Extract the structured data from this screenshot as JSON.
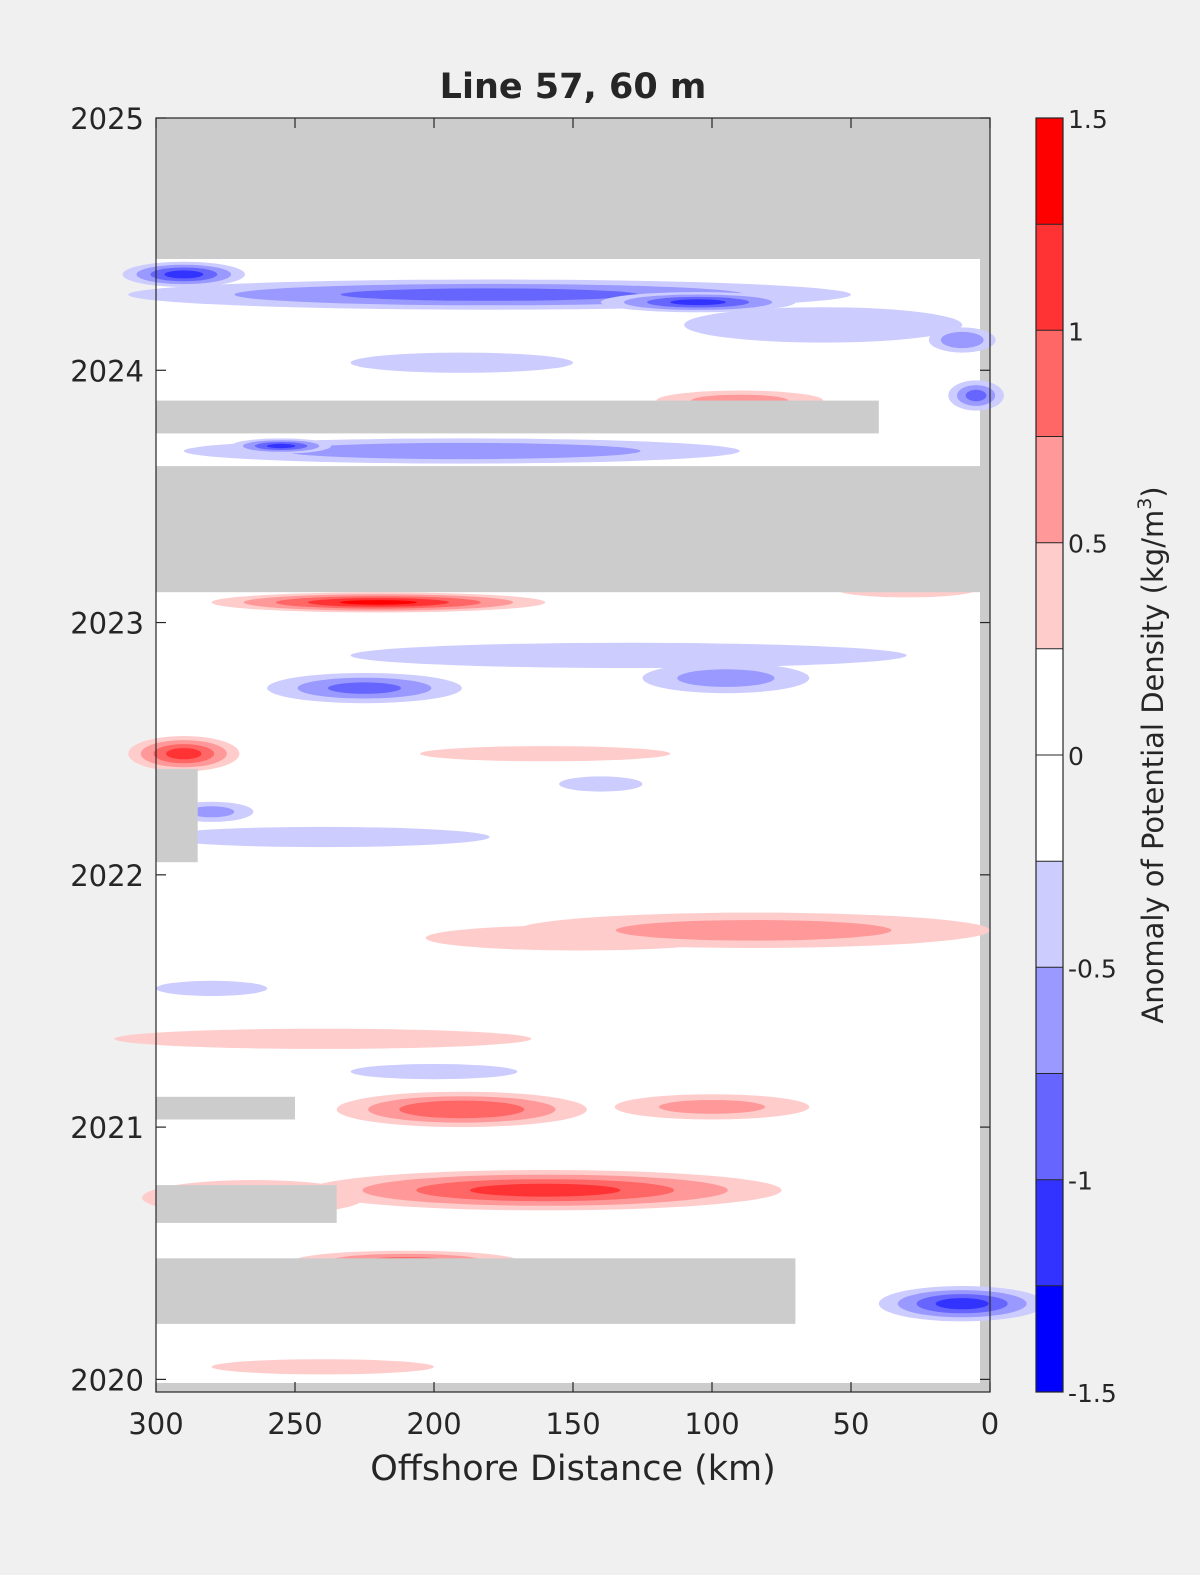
{
  "chart_data": {
    "type": "heatmap",
    "title": "Line 57, 60 m",
    "xlabel": "Offshore Distance (km)",
    "ylabel": "",
    "xlim": [
      300,
      0
    ],
    "ylim": [
      2019.95,
      2025
    ],
    "x_ticks": [
      300,
      250,
      200,
      150,
      100,
      50,
      0
    ],
    "x_tick_labels": [
      "300",
      "250",
      "200",
      "150",
      "100",
      "50",
      "0"
    ],
    "y_ticks": [
      2020,
      2021,
      2022,
      2023,
      2024,
      2025
    ],
    "y_tick_labels": [
      "2020",
      "2021",
      "2022",
      "2023",
      "2024",
      "2025"
    ],
    "grid": false,
    "colorbar": {
      "label_main": "Anomaly of Potential Density (kg/m",
      "label_sup": "3",
      "label_end": ")",
      "range": [
        -1.5,
        1.5
      ],
      "ticks": [
        -1.5,
        -1,
        -0.5,
        0,
        0.5,
        1,
        1.5
      ],
      "tick_labels": [
        "-1.5",
        "-1",
        "-0.5",
        "0",
        "0.5",
        "1",
        "1.5"
      ],
      "levels": [
        {
          "from": -1.5,
          "to": -1.25,
          "color": "#0000ff"
        },
        {
          "from": -1.25,
          "to": -1.0,
          "color": "#3333ff"
        },
        {
          "from": -1.0,
          "to": -0.75,
          "color": "#6666ff"
        },
        {
          "from": -0.75,
          "to": -0.5,
          "color": "#9999ff"
        },
        {
          "from": -0.5,
          "to": -0.25,
          "color": "#ccccff"
        },
        {
          "from": -0.25,
          "to": 0.0,
          "color": "#ffffff"
        },
        {
          "from": 0.0,
          "to": 0.25,
          "color": "#ffffff"
        },
        {
          "from": 0.25,
          "to": 0.5,
          "color": "#ffcccc"
        },
        {
          "from": 0.5,
          "to": 0.75,
          "color": "#ff9999"
        },
        {
          "from": 0.75,
          "to": 1.0,
          "color": "#ff6666"
        },
        {
          "from": 1.0,
          "to": 1.25,
          "color": "#ff3333"
        },
        {
          "from": 1.25,
          "to": 1.5,
          "color": "#ff0000"
        }
      ]
    },
    "missing_color": "#cccccc",
    "missing_data_bands": [
      {
        "x_from": 300,
        "x_to": 0,
        "t_from": 2024.45,
        "t_to": 2025.0
      },
      {
        "x_from": 300,
        "x_to": 40,
        "t_from": 2023.75,
        "t_to": 2023.88
      },
      {
        "x_from": 300,
        "x_to": 0,
        "t_from": 2023.12,
        "t_to": 2023.62
      },
      {
        "x_from": 300,
        "x_to": 285,
        "t_from": 2022.05,
        "t_to": 2022.42
      },
      {
        "x_from": 300,
        "x_to": 250,
        "t_from": 2021.03,
        "t_to": 2021.12
      },
      {
        "x_from": 300,
        "x_to": 235,
        "t_from": 2020.62,
        "t_to": 2020.77
      },
      {
        "x_from": 300,
        "x_to": 70,
        "t_from": 2020.22,
        "t_to": 2020.48
      }
    ],
    "anomaly_features": [
      {
        "x": 290,
        "t": 2024.38,
        "rx": 22,
        "rt": 0.05,
        "value": -1.1
      },
      {
        "x": 180,
        "t": 2024.3,
        "rx": 130,
        "rt": 0.06,
        "value": -0.85
      },
      {
        "x": 105,
        "t": 2024.27,
        "rx": 35,
        "rt": 0.04,
        "value": -1.05
      },
      {
        "x": 60,
        "t": 2024.18,
        "rx": 50,
        "rt": 0.07,
        "value": -0.5
      },
      {
        "x": 10,
        "t": 2024.12,
        "rx": 12,
        "rt": 0.05,
        "value": -0.7
      },
      {
        "x": 190,
        "t": 2024.03,
        "rx": 40,
        "rt": 0.04,
        "value": -0.3
      },
      {
        "x": 5,
        "t": 2023.9,
        "rx": 10,
        "rt": 0.06,
        "value": -0.8
      },
      {
        "x": 90,
        "t": 2023.88,
        "rx": 30,
        "rt": 0.04,
        "value": 0.6
      },
      {
        "x": 190,
        "t": 2023.68,
        "rx": 100,
        "rt": 0.05,
        "value": -0.7
      },
      {
        "x": 255,
        "t": 2023.7,
        "rx": 18,
        "rt": 0.03,
        "value": -1.05
      },
      {
        "x": 220,
        "t": 2023.08,
        "rx": 60,
        "rt": 0.04,
        "value": 1.3
      },
      {
        "x": 30,
        "t": 2023.13,
        "rx": 25,
        "rt": 0.03,
        "value": 0.3
      },
      {
        "x": 130,
        "t": 2022.87,
        "rx": 100,
        "rt": 0.05,
        "value": -0.5
      },
      {
        "x": 95,
        "t": 2022.78,
        "rx": 30,
        "rt": 0.06,
        "value": -0.6
      },
      {
        "x": 225,
        "t": 2022.74,
        "rx": 35,
        "rt": 0.06,
        "value": -0.8
      },
      {
        "x": 290,
        "t": 2022.48,
        "rx": 20,
        "rt": 0.07,
        "value": 1.1
      },
      {
        "x": 160,
        "t": 2022.48,
        "rx": 45,
        "rt": 0.03,
        "value": 0.3
      },
      {
        "x": 140,
        "t": 2022.36,
        "rx": 15,
        "rt": 0.03,
        "value": -0.3
      },
      {
        "x": 240,
        "t": 2022.15,
        "rx": 60,
        "rt": 0.04,
        "value": -0.3
      },
      {
        "x": 280,
        "t": 2022.25,
        "rx": 15,
        "rt": 0.04,
        "value": -0.55
      },
      {
        "x": 148,
        "t": 2021.75,
        "rx": 55,
        "rt": 0.05,
        "value": 0.35
      },
      {
        "x": 85,
        "t": 2021.78,
        "rx": 85,
        "rt": 0.07,
        "value": 0.6
      },
      {
        "x": 280,
        "t": 2021.55,
        "rx": 20,
        "rt": 0.03,
        "value": -0.5
      },
      {
        "x": 240,
        "t": 2021.35,
        "rx": 75,
        "rt": 0.04,
        "value": 0.35
      },
      {
        "x": 200,
        "t": 2021.22,
        "rx": 30,
        "rt": 0.03,
        "value": -0.3
      },
      {
        "x": 190,
        "t": 2021.07,
        "rx": 45,
        "rt": 0.07,
        "value": 1.0
      },
      {
        "x": 100,
        "t": 2021.08,
        "rx": 35,
        "rt": 0.05,
        "value": 0.55
      },
      {
        "x": 160,
        "t": 2020.75,
        "rx": 85,
        "rt": 0.08,
        "value": 1.1
      },
      {
        "x": 265,
        "t": 2020.72,
        "rx": 40,
        "rt": 0.07,
        "value": 0.8
      },
      {
        "x": 210,
        "t": 2020.47,
        "rx": 40,
        "rt": 0.04,
        "value": 0.8
      },
      {
        "x": 10,
        "t": 2020.3,
        "rx": 30,
        "rt": 0.07,
        "value": -1.1
      },
      {
        "x": 240,
        "t": 2020.05,
        "rx": 40,
        "rt": 0.03,
        "value": 0.4
      }
    ]
  }
}
